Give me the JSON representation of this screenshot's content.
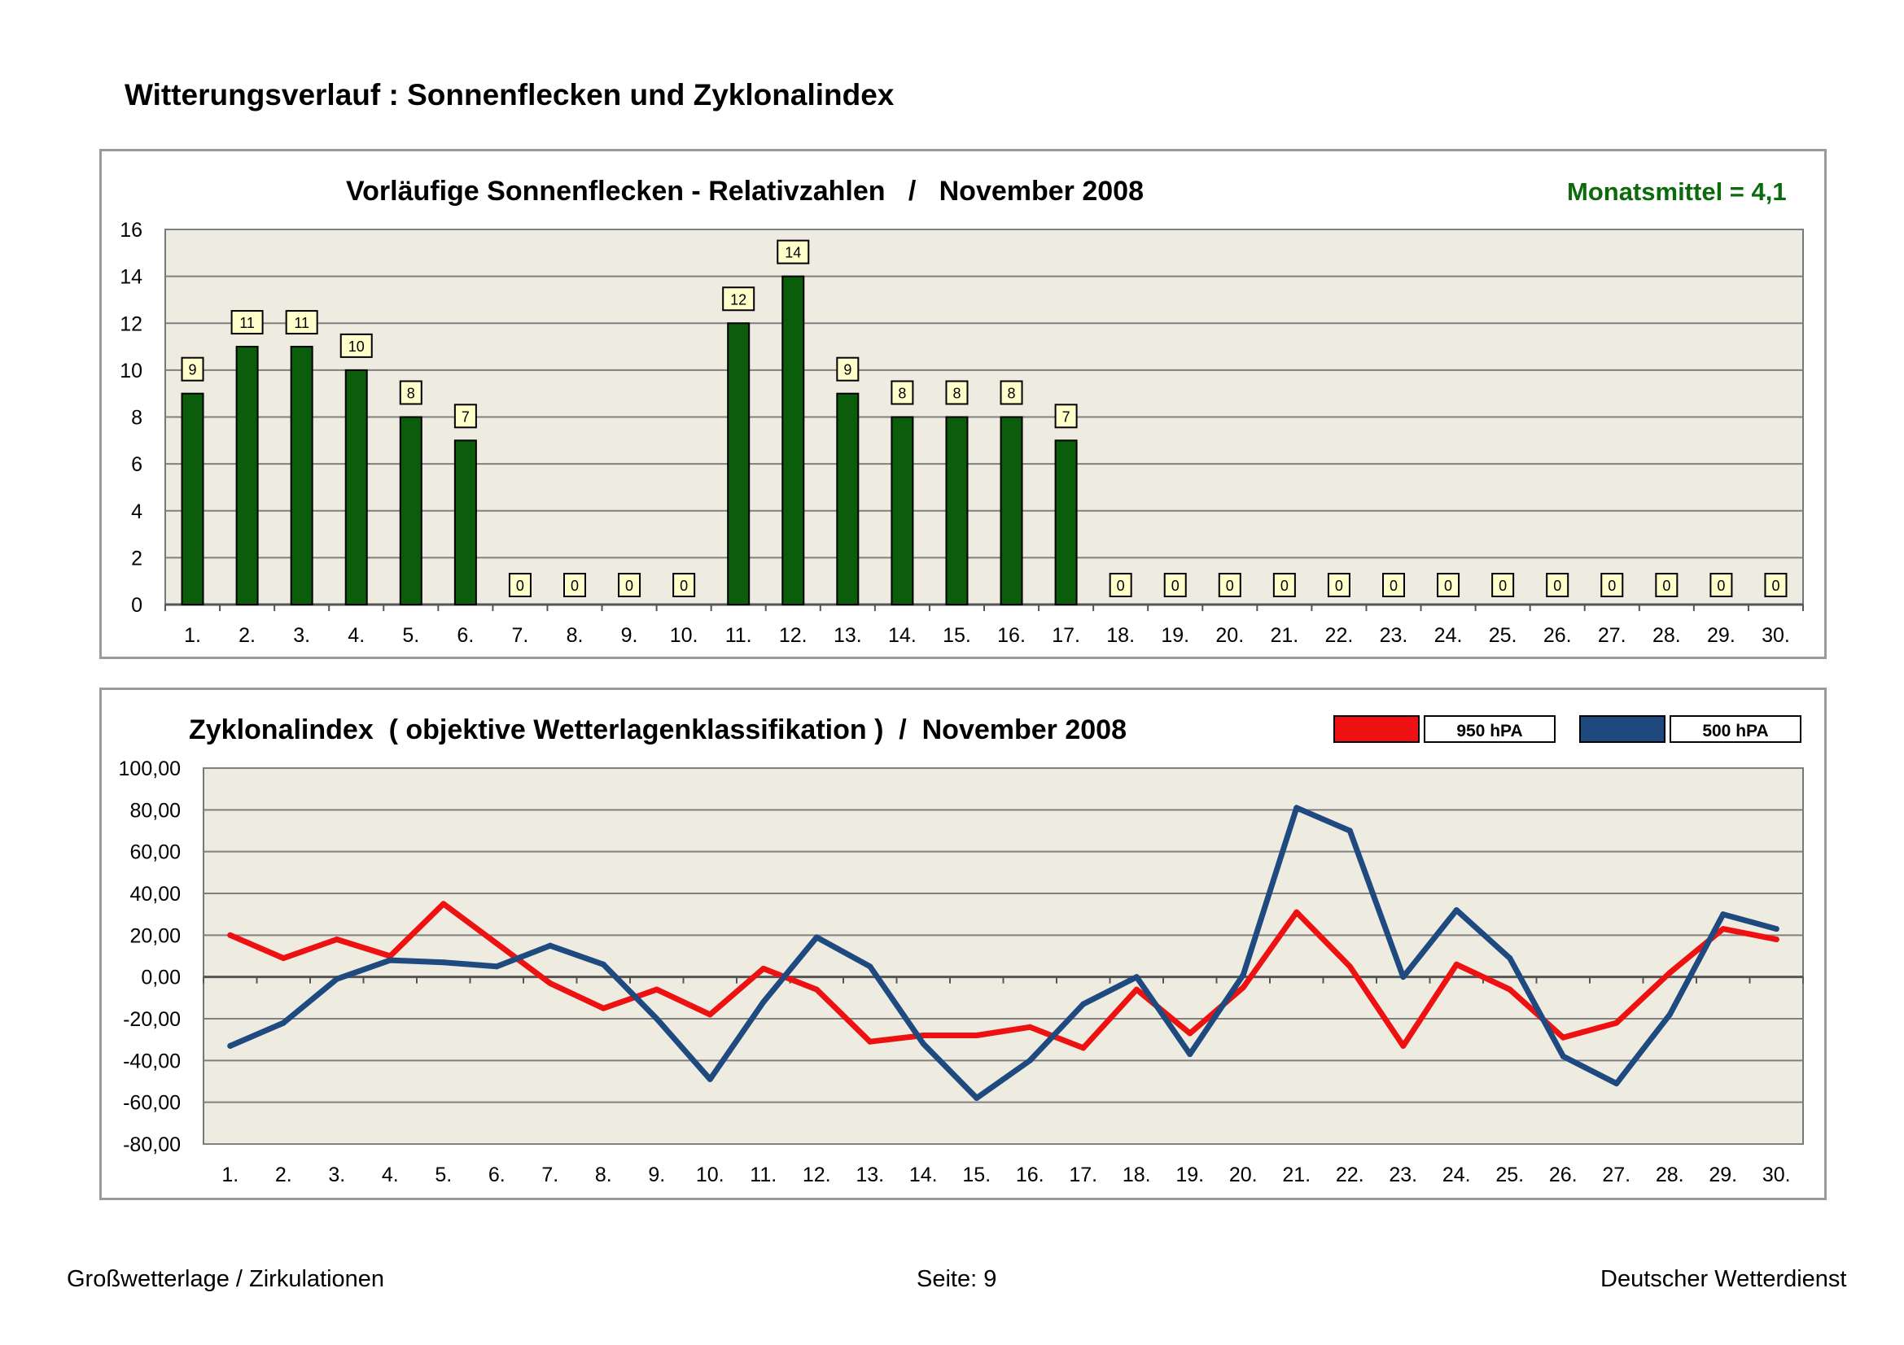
{
  "page": {
    "title": "Witterungsverlauf : Sonnenflecken und Zyklonalindex"
  },
  "footer": {
    "left": "Großwetterlage / Zirkulationen",
    "center": "Seite: 9",
    "right": "Deutscher Wetterdienst"
  },
  "colors": {
    "plot_bg": "#eeebe0",
    "bar": "#0b5c0b",
    "monthly_mean": "#0b6a0b",
    "series_950": "#ee1111",
    "series_500": "#1f4a80",
    "label_bg": "#ffffcc"
  },
  "chart_data": [
    {
      "type": "bar",
      "title": "Vorläufige Sonnenflecken - Relativzahlen   /   November 2008",
      "annotation": "Monatsmittel = 4,1",
      "categories": [
        "1.",
        "2.",
        "3.",
        "4.",
        "5.",
        "6.",
        "7.",
        "8.",
        "9.",
        "10.",
        "11.",
        "12.",
        "13.",
        "14.",
        "15.",
        "16.",
        "17.",
        "18.",
        "19.",
        "20.",
        "21.",
        "22.",
        "23.",
        "24.",
        "25.",
        "26.",
        "27.",
        "28.",
        "29.",
        "30."
      ],
      "values": [
        9,
        11,
        11,
        10,
        8,
        7,
        0,
        0,
        0,
        0,
        12,
        14,
        9,
        8,
        8,
        8,
        7,
        0,
        0,
        0,
        0,
        0,
        0,
        0,
        0,
        0,
        0,
        0,
        0,
        0
      ],
      "ylim": [
        0,
        16
      ],
      "yticks": [
        "0",
        "2",
        "4",
        "6",
        "8",
        "10",
        "12",
        "14",
        "16"
      ],
      "grid": true,
      "data_labels": true
    },
    {
      "type": "line",
      "title": "Zyklonalindex  ( objektive Wetterlagenklassifikation )  /  November 2008",
      "categories": [
        "1.",
        "2.",
        "3.",
        "4.",
        "5.",
        "6.",
        "7.",
        "8.",
        "9.",
        "10.",
        "11.",
        "12.",
        "13.",
        "14.",
        "15.",
        "16.",
        "17.",
        "18.",
        "19.",
        "20.",
        "21.",
        "22.",
        "23.",
        "24.",
        "25.",
        "26.",
        "27.",
        "28.",
        "29.",
        "30."
      ],
      "series": [
        {
          "name": "950 hPA",
          "values": [
            20,
            9,
            18,
            10,
            35,
            16,
            -3,
            -15,
            -6,
            -18,
            4,
            -6,
            -31,
            -28,
            -28,
            -24,
            -34,
            -6,
            -27,
            -5,
            31,
            5,
            -33,
            6,
            -6,
            -29,
            -22,
            2,
            23,
            18
          ]
        },
        {
          "name": "500 hPA",
          "values": [
            -33,
            -22,
            -1,
            8,
            7,
            5,
            15,
            6,
            -20,
            -49,
            -12,
            19,
            5,
            -32,
            -58,
            -40,
            -13,
            0,
            -37,
            1,
            81,
            70,
            0,
            32,
            9,
            -38,
            -51,
            -18,
            30,
            23
          ]
        }
      ],
      "ylim": [
        -80,
        100
      ],
      "yticks": [
        "-80,00",
        "-60,00",
        "-40,00",
        "-20,00",
        "0,00",
        "20,00",
        "40,00",
        "60,00",
        "80,00",
        "100,00"
      ],
      "legend": "top-right",
      "grid": true
    }
  ]
}
